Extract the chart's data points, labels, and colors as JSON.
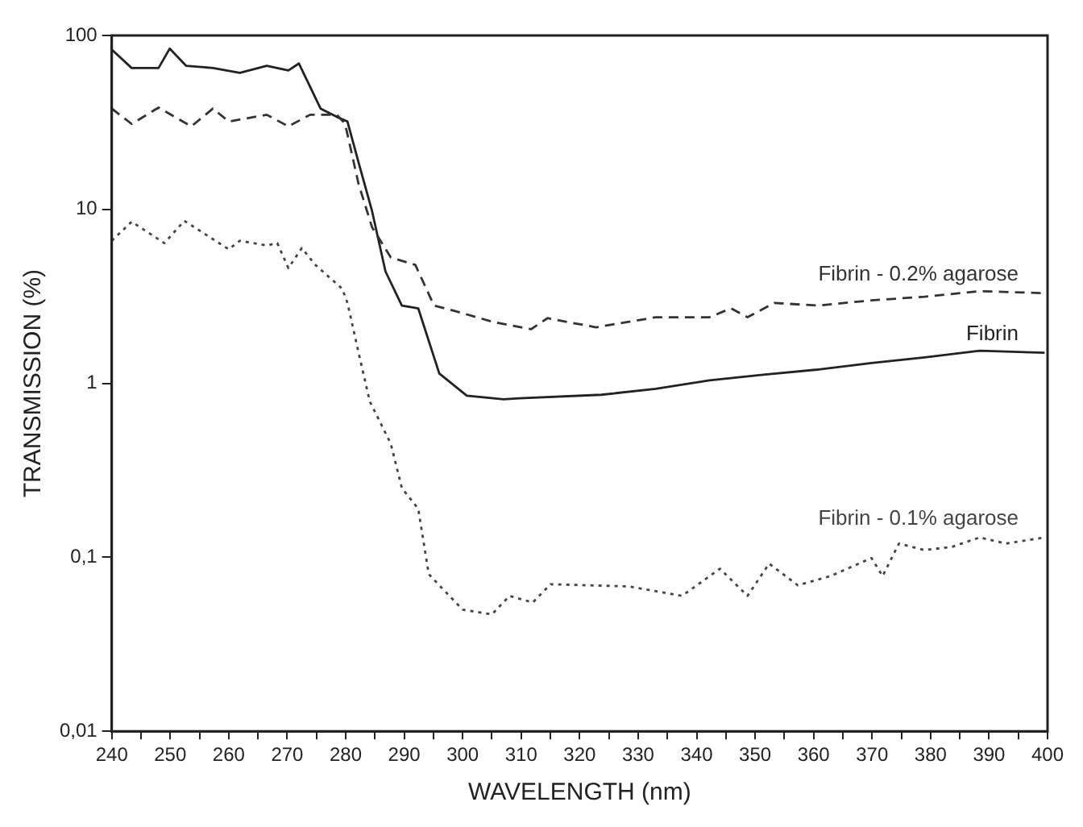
{
  "chart_data": {
    "type": "line",
    "xlabel": "WAVELENGTH (nm)",
    "ylabel": "TRANSMISSION (%)",
    "log": "y",
    "grid": false,
    "legend": false,
    "marker": "none",
    "xlim": [
      240,
      400
    ],
    "ylim": [
      0.01,
      100
    ],
    "xticks": [
      240,
      {
        "value": 245,
        "label": null
      },
      250,
      {
        "value": 255,
        "label": null
      },
      260,
      {
        "value": 265,
        "label": null
      },
      270,
      {
        "value": 275,
        "label": null
      },
      280,
      {
        "value": 285,
        "label": null
      },
      290,
      {
        "value": 295,
        "label": null
      },
      300,
      {
        "value": 305,
        "label": null
      },
      310,
      {
        "value": 315,
        "label": null
      },
      320,
      {
        "value": 325,
        "label": null
      },
      330,
      {
        "value": 335,
        "label": null
      },
      340,
      {
        "value": 345,
        "label": null
      },
      350,
      {
        "value": 355,
        "label": null
      },
      360,
      {
        "value": 365,
        "label": null
      },
      370,
      {
        "value": 375,
        "label": null
      },
      380,
      {
        "value": 385,
        "label": null
      },
      390,
      {
        "value": 395,
        "label": null
      },
      400
    ],
    "yticks": [
      {
        "value": 0.01,
        "label": "0,01"
      },
      {
        "value": 0.1,
        "label": "0,1"
      },
      1,
      10,
      100
    ],
    "series": [
      {
        "name": "Fibrin - 0.2% agarose",
        "color": "#333333",
        "line_style": "dashed",
        "x": [
          240,
          243.4,
          248,
          253.6,
          257.3,
          260,
          266.5,
          270.2,
          273.9,
          278.5,
          279.9,
          282.2,
          284.5,
          287.7,
          291.9,
          295.1,
          298.8,
          305.3,
          311.7,
          314.5,
          322.8,
          333,
          342.2,
          345.9,
          348.7,
          353.3,
          360.7,
          369.9,
          379,
          388.4,
          399.5
        ],
        "values": [
          38,
          31,
          38.5,
          30,
          38,
          32,
          35,
          30,
          35,
          35,
          31,
          14,
          7.9,
          5.3,
          4.8,
          2.8,
          2.6,
          2.25,
          2.05,
          2.37,
          2.1,
          2.4,
          2.4,
          2.7,
          2.4,
          2.9,
          2.8,
          3.0,
          3.15,
          3.39,
          3.3
        ]
      },
      {
        "name": "Fibrin",
        "color": "#222222",
        "line_style": "solid",
        "x": [
          240,
          243.4,
          248,
          249.9,
          252.7,
          257.3,
          261.9,
          266.5,
          270.2,
          272,
          275.7,
          278.5,
          280.3,
          282.2,
          284.5,
          286.8,
          289.6,
          292.4,
          296,
          300.7,
          307,
          309.7,
          323.7,
          333,
          342.2,
          351.4,
          360.7,
          369.9,
          379,
          388.4,
          399.5
        ],
        "values": [
          83,
          65,
          65,
          84,
          67,
          65,
          61,
          67,
          63,
          69,
          38,
          34,
          32,
          18.6,
          9.8,
          4.4,
          2.8,
          2.7,
          1.14,
          0.85,
          0.81,
          0.82,
          0.86,
          0.93,
          1.04,
          1.12,
          1.2,
          1.31,
          1.41,
          1.54,
          1.5
        ]
      },
      {
        "name": "Fibrin - 0.1% agarose",
        "color": "#444444",
        "line_style": "dotted",
        "x": [
          240,
          243.4,
          249,
          252.4,
          260,
          261.9,
          266.5,
          268.3,
          270.2,
          272.5,
          274.8,
          279.4,
          280.3,
          282.2,
          284.1,
          287.7,
          289.6,
          292.4,
          294.2,
          296,
          300,
          305,
          308,
          312,
          315,
          328.4,
          337.5,
          344,
          348.7,
          352.4,
          357.3,
          362.9,
          369.9,
          371.8,
          374.6,
          379,
          383.7,
          388.4,
          392.9,
          399.5
        ],
        "values": [
          6.6,
          8.5,
          6.4,
          8.6,
          5.9,
          6.6,
          6.2,
          6.4,
          4.6,
          6.0,
          4.8,
          3.5,
          2.9,
          1.5,
          0.79,
          0.45,
          0.25,
          0.19,
          0.08,
          0.069,
          0.05,
          0.047,
          0.06,
          0.055,
          0.07,
          0.068,
          0.06,
          0.086,
          0.06,
          0.092,
          0.069,
          0.078,
          0.099,
          0.078,
          0.12,
          0.11,
          0.115,
          0.13,
          0.12,
          0.13
        ]
      }
    ]
  }
}
